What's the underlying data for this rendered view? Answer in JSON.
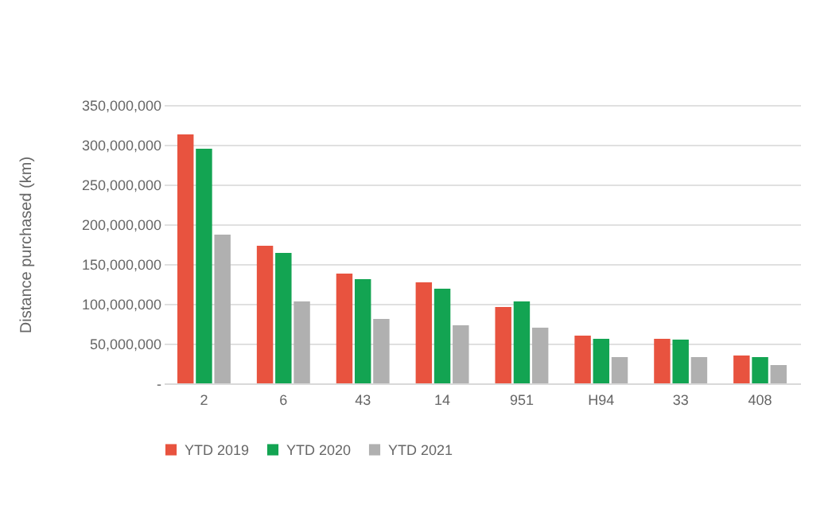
{
  "chart_data": {
    "type": "bar",
    "ylabel": "Distance purchased (km)",
    "categories": [
      "2",
      "6",
      "43",
      "14",
      "951",
      "H94",
      "33",
      "408"
    ],
    "series": [
      {
        "name": "YTD 2019",
        "color": "#e8533f",
        "values": [
          313000000,
          173000000,
          138000000,
          127000000,
          96000000,
          60000000,
          56000000,
          35000000
        ]
      },
      {
        "name": "YTD 2020",
        "color": "#13a452",
        "values": [
          295000000,
          164000000,
          131000000,
          119000000,
          103000000,
          56000000,
          55000000,
          33000000
        ]
      },
      {
        "name": "YTD 2021",
        "color": "#b0b0b0",
        "values": [
          187000000,
          103000000,
          81000000,
          73000000,
          70000000,
          33000000,
          33000000,
          23000000
        ]
      }
    ],
    "ylim": [
      0,
      350000000
    ],
    "yticks": [
      {
        "value": 0,
        "label": "-"
      },
      {
        "value": 50000000,
        "label": "50,000,000"
      },
      {
        "value": 100000000,
        "label": "100,000,000"
      },
      {
        "value": 150000000,
        "label": "150,000,000"
      },
      {
        "value": 200000000,
        "label": "200,000,000"
      },
      {
        "value": 250000000,
        "label": "250,000,000"
      },
      {
        "value": 300000000,
        "label": "300,000,000"
      },
      {
        "value": 350000000,
        "label": "350,000,000"
      }
    ],
    "grid": "y",
    "legend": "bottom"
  }
}
